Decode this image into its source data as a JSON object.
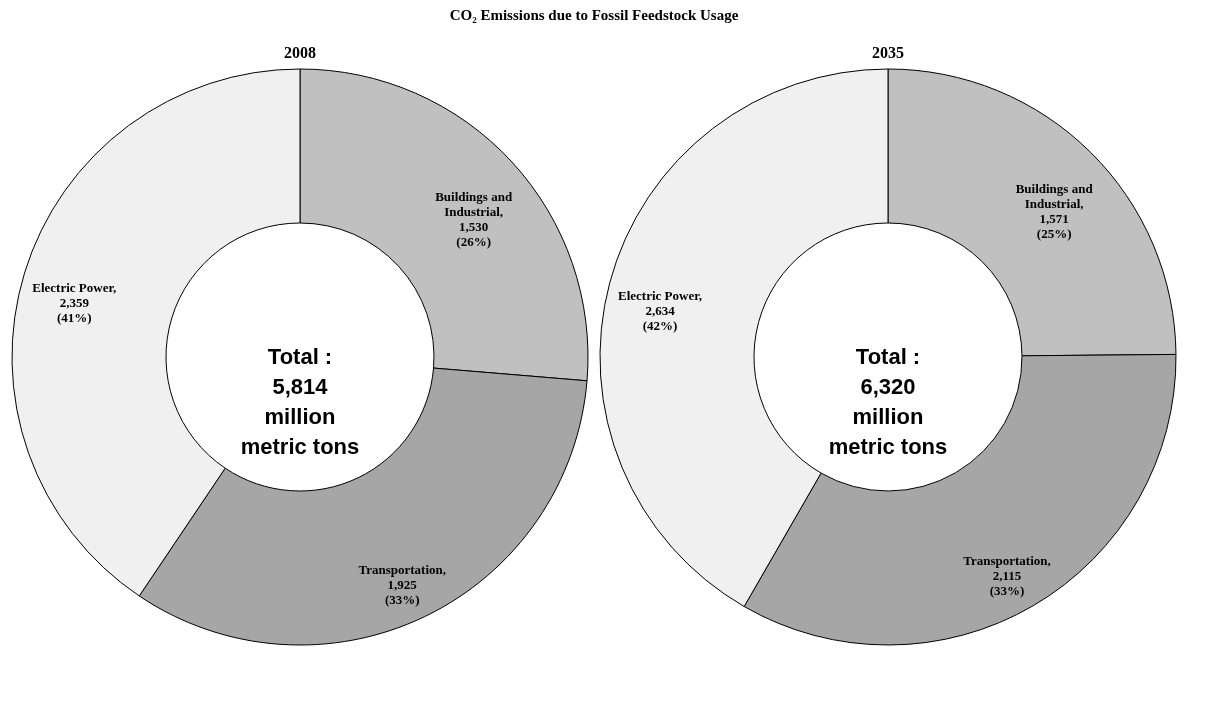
{
  "chart_data": [
    {
      "type": "donut",
      "title": "CO₂ Emissions due to Fossil Feedstock Usage",
      "subtitle": "2008",
      "categories": [
        "Buildings and Industrial",
        "Transportation",
        "Electric Power"
      ],
      "values": [
        1530,
        1925,
        2359
      ],
      "value_labels": [
        ",\n1,530\n(26%)",
        ",\n1,925\n(33%)",
        ",\n2,359\n(41%)"
      ],
      "colors": [
        "#c0c0c0",
        "#a6a6a6",
        "#f0f0f0"
      ],
      "annotations": [
        "Total :\n5,814\nmillion\nmetric tons"
      ],
      "legend": false
    },
    {
      "type": "donut",
      "subtitle": "2035",
      "categories": [
        "Buildings and Industrial",
        "Transportation",
        "Electric Power"
      ],
      "values": [
        1571,
        2115,
        2634
      ],
      "value_labels": [
        ",\n1,571\n(25%)",
        ",\n2,115\n(33%)",
        ",\n2,634\n(42%)"
      ],
      "colors": [
        "#c0c0c0",
        "#a6a6a6",
        "#f0f0f0"
      ],
      "annotations": [
        "Total :\n6,320\nmillion\nmetric tons"
      ],
      "legend": false
    }
  ]
}
